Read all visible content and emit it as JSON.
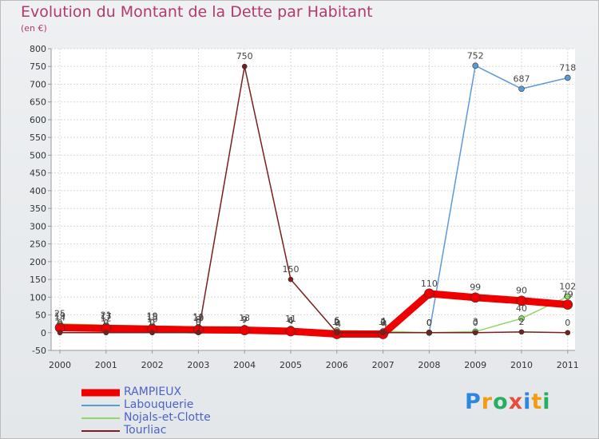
{
  "header": {
    "title": "Evolution du Montant de la Dette par Habitant",
    "unit": "(en €)"
  },
  "brand": {
    "logo_text": "Proxiti",
    "letter_colors": [
      "#2e86de",
      "#f39c12",
      "#27ae60",
      "#e74c3c",
      "#2e86de",
      "#f39c12",
      "#27ae60"
    ]
  },
  "chart_data": {
    "type": "line",
    "title": "Evolution du Montant de la Dette par Habitant",
    "ylabel": "(en €)",
    "xlabel": "",
    "ylim": [
      -50,
      800
    ],
    "yticks": [
      -50,
      0,
      50,
      100,
      150,
      200,
      250,
      300,
      350,
      400,
      450,
      500,
      550,
      600,
      650,
      700,
      750,
      800
    ],
    "categories": [
      "2000",
      "2001",
      "2002",
      "2003",
      "2004",
      "2005",
      "2006",
      "2007",
      "2008",
      "2009",
      "2010",
      "2011"
    ],
    "grid": true,
    "legend_position": "bottom-left",
    "series": [
      {
        "name": "RAMPIEUX",
        "color": "#ee0000",
        "values": [
          14,
          12,
          10,
          8,
          7,
          4,
          -4,
          -4,
          110,
          99,
          90,
          79
        ],
        "labels": [
          "14",
          "12",
          "10",
          "8",
          "7",
          "4",
          "-4",
          "-4",
          "110",
          "99",
          "90",
          "79"
        ]
      },
      {
        "name": "Labouquerie",
        "color": "#5b9bd5",
        "values": [
          19,
          17,
          15,
          13,
          9,
          6,
          2,
          2,
          0,
          752,
          687,
          718
        ],
        "labels": [
          "19",
          "17",
          "15",
          "13",
          "9",
          "6",
          "2",
          "2",
          "0",
          "752",
          "687",
          "718"
        ]
      },
      {
        "name": "Nojals-et-Clotte",
        "color": "#8ed86b",
        "values": [
          25,
          21,
          19,
          16,
          13,
          11,
          6,
          4,
          0,
          3,
          40,
          102
        ],
        "labels": [
          "25",
          "21",
          "19",
          "16",
          "13",
          "11",
          "6",
          "4",
          "0",
          "3",
          "40",
          "102"
        ]
      },
      {
        "name": "Tourliac",
        "color": "#7a1e1e",
        "values": [
          0,
          0,
          0,
          0,
          750,
          150,
          0,
          0,
          0,
          0,
          2,
          0
        ],
        "labels": [
          "0",
          "0",
          "0",
          "0",
          "750",
          "150",
          "0",
          "0",
          "0",
          "0",
          "2",
          "0"
        ]
      }
    ]
  }
}
